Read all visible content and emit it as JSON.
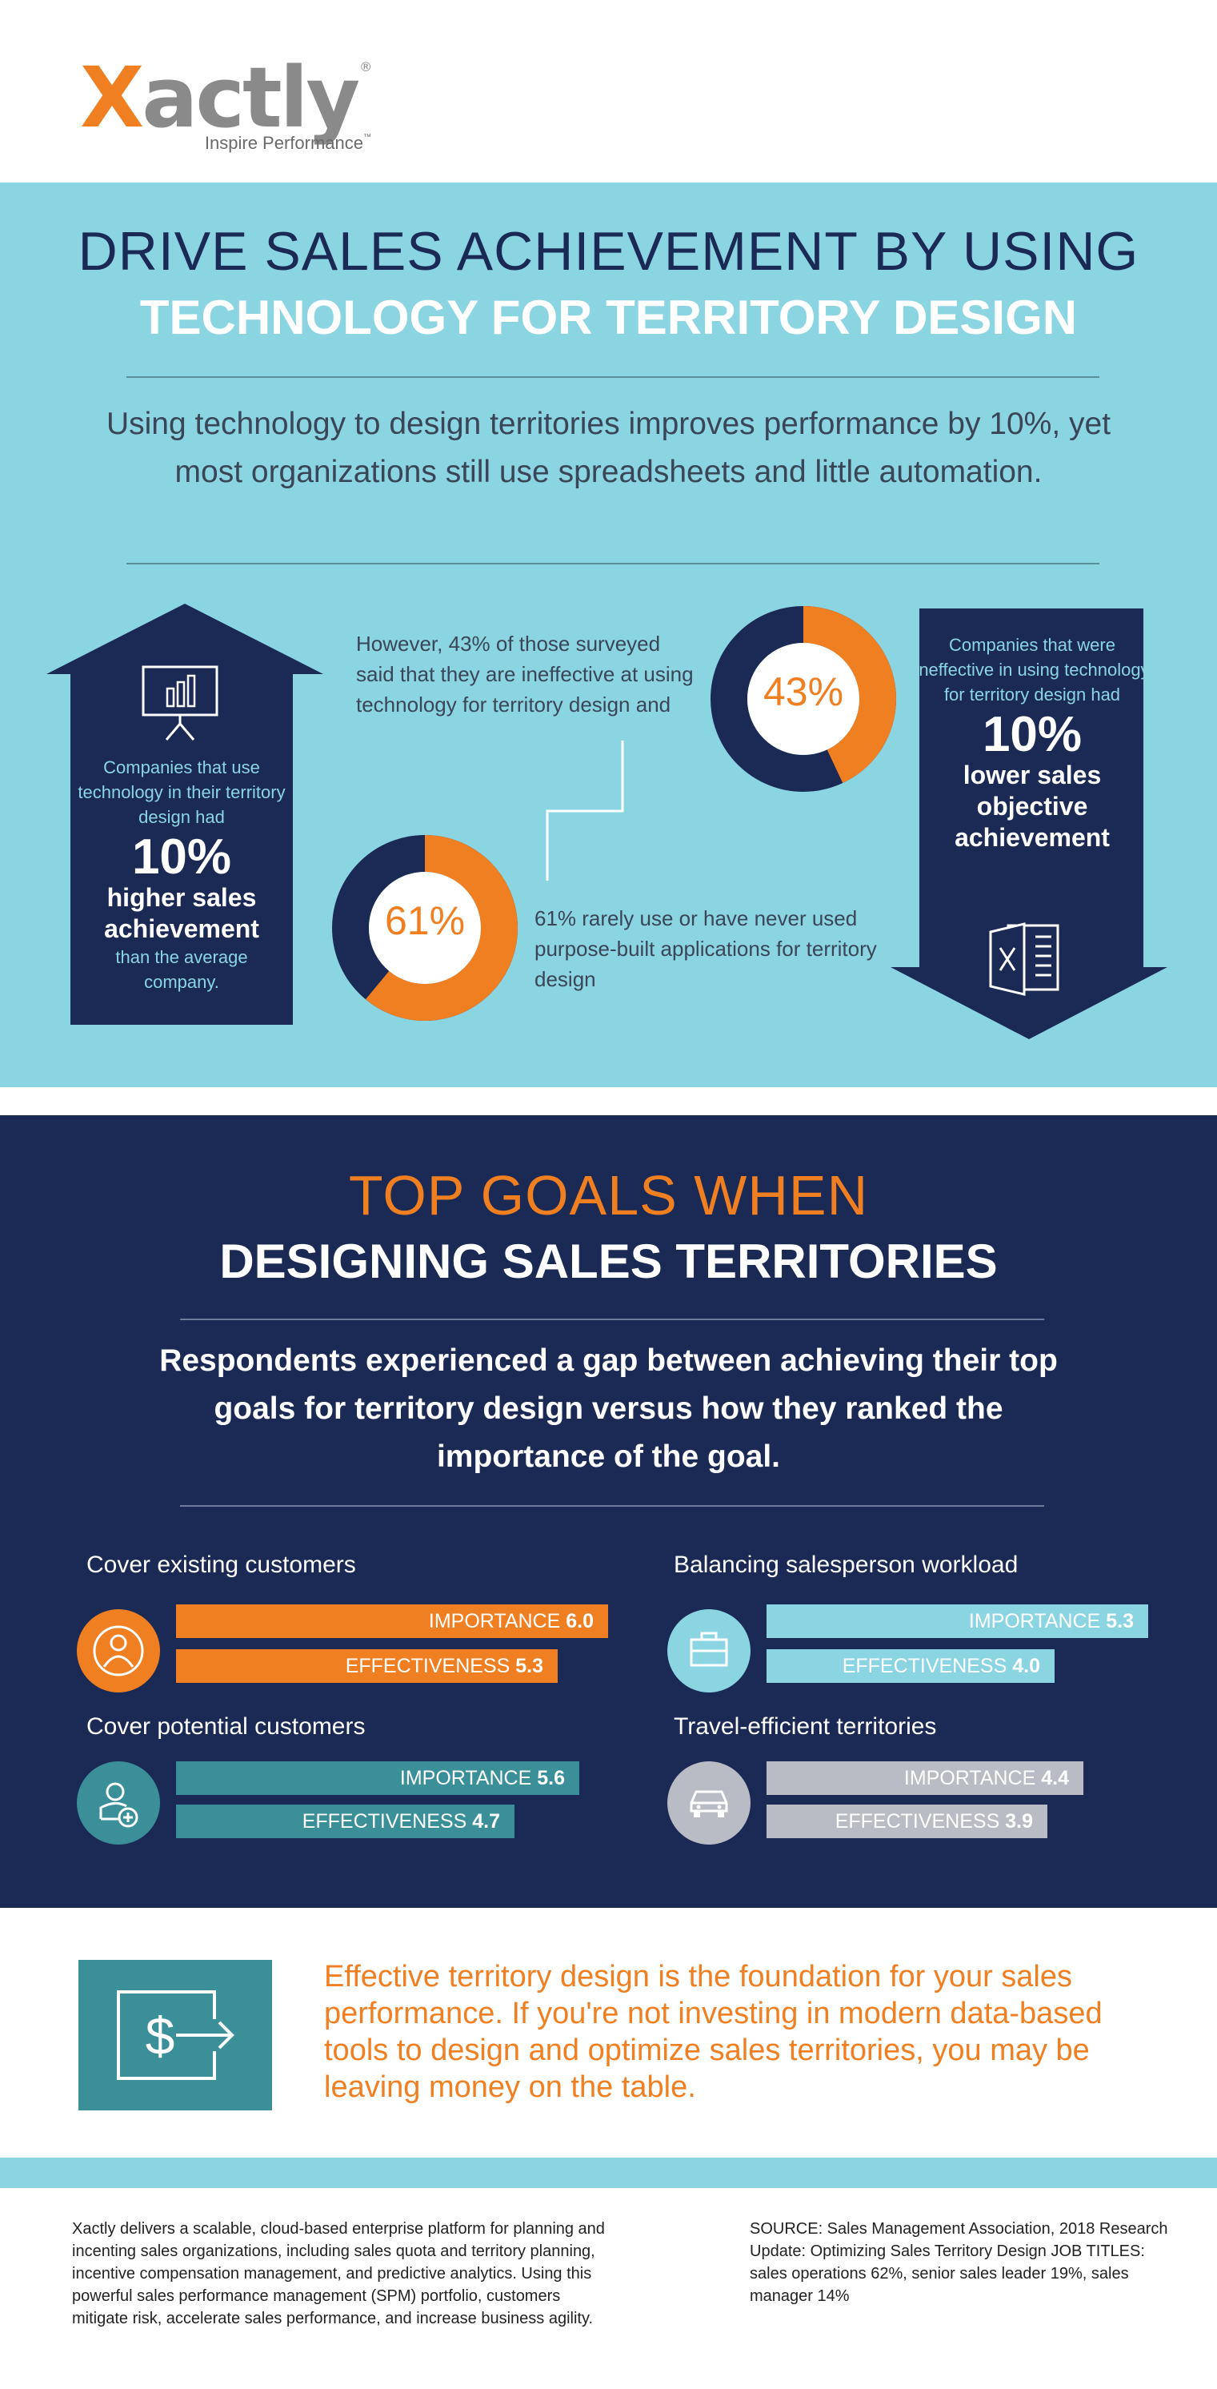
{
  "logo": {
    "word_first": "X",
    "word_rest": "actly",
    "registered": "®",
    "tagline": "Inspire Performance",
    "tm": "™"
  },
  "section1": {
    "title_line1": "DRIVE SALES ACHIEVEMENT BY USING",
    "title_line2": "TECHNOLOGY FOR TERRITORY DESIGN",
    "lead": "Using technology to design territories improves performance by 10%, yet most organizations still use spreadsheets and little automation.",
    "up_arrow": {
      "text": "Companies that use technology in their territory design had",
      "value": "10%",
      "bold": "higher sales achievement",
      "after": "than the average company."
    },
    "stat43": {
      "text": "However, 43% of those surveyed said that they are ineffective at using technology for territory design and",
      "label": "43%",
      "percent": 43
    },
    "stat61": {
      "text": "61% rarely use or have never used purpose-built applications for territory design",
      "label": "61%",
      "percent": 61
    },
    "down_arrow": {
      "text": "Companies that were ineffective in using technology for territory design had",
      "value": "10%",
      "bold": "lower sales objective achievement"
    }
  },
  "section2": {
    "title_line1": "TOP GOALS WHEN",
    "title_line2": "DESIGNING SALES TERRITORIES",
    "lead": "Respondents experienced a gap between achieving their top goals for territory design versus how they ranked the importance of the goal.",
    "goals": [
      {
        "title": "Cover existing customers",
        "importance_label": "IMPORTANCE",
        "importance": 6.0,
        "importance_text": "6.0",
        "effectiveness_label": "EFFECTIVENESS",
        "effectiveness": 5.3,
        "effectiveness_text": "5.3",
        "color": "#f07f22",
        "icon": "customer-target-icon"
      },
      {
        "title": "Balancing salesperson workload",
        "importance_label": "IMPORTANCE",
        "importance": 5.3,
        "importance_text": "5.3",
        "effectiveness_label": "EFFECTIVENESS",
        "effectiveness": 4.0,
        "effectiveness_text": "4.0",
        "color": "#8bd5e3",
        "icon": "briefcase-icon"
      },
      {
        "title": "Cover potential customers",
        "importance_label": "IMPORTANCE",
        "importance": 5.6,
        "importance_text": "5.6",
        "effectiveness_label": "EFFECTIVENESS",
        "effectiveness": 4.7,
        "effectiveness_text": "4.7",
        "color": "#3a8f99",
        "icon": "add-user-icon"
      },
      {
        "title": "Travel-efficient territories",
        "importance_label": "IMPORTANCE",
        "importance": 4.4,
        "importance_text": "4.4",
        "effectiveness_label": "EFFECTIVENESS",
        "effectiveness": 3.9,
        "effectiveness_text": "3.9",
        "color": "#b9bcc4",
        "icon": "car-icon"
      }
    ]
  },
  "cta": {
    "text": "Effective territory design is the foundation for your sales performance. If you're not investing in modern data-based tools to design and optimize sales territories, you may be leaving money on the table.",
    "icon": "dollar-arrow-icon"
  },
  "footer": {
    "about": "Xactly delivers a scalable, cloud-based enterprise platform for planning and incenting sales organizations, including sales quota and territory planning, incentive compensation management, and predictive analytics. Using this powerful sales performance management (SPM) portfolio, customers mitigate risk, accelerate sales performance, and increase business agility.",
    "source": "SOURCE: Sales Management Association, 2018 Research Update: Optimizing Sales Territory Design JOB TITLES: sales operations 62%, senior sales leader 19%, sales manager 14%"
  },
  "colors": {
    "navy": "#1b2a55",
    "orange": "#f07f22",
    "light_blue": "#8bd5e3",
    "teal": "#3a8f99",
    "gray": "#b9bcc4"
  }
}
